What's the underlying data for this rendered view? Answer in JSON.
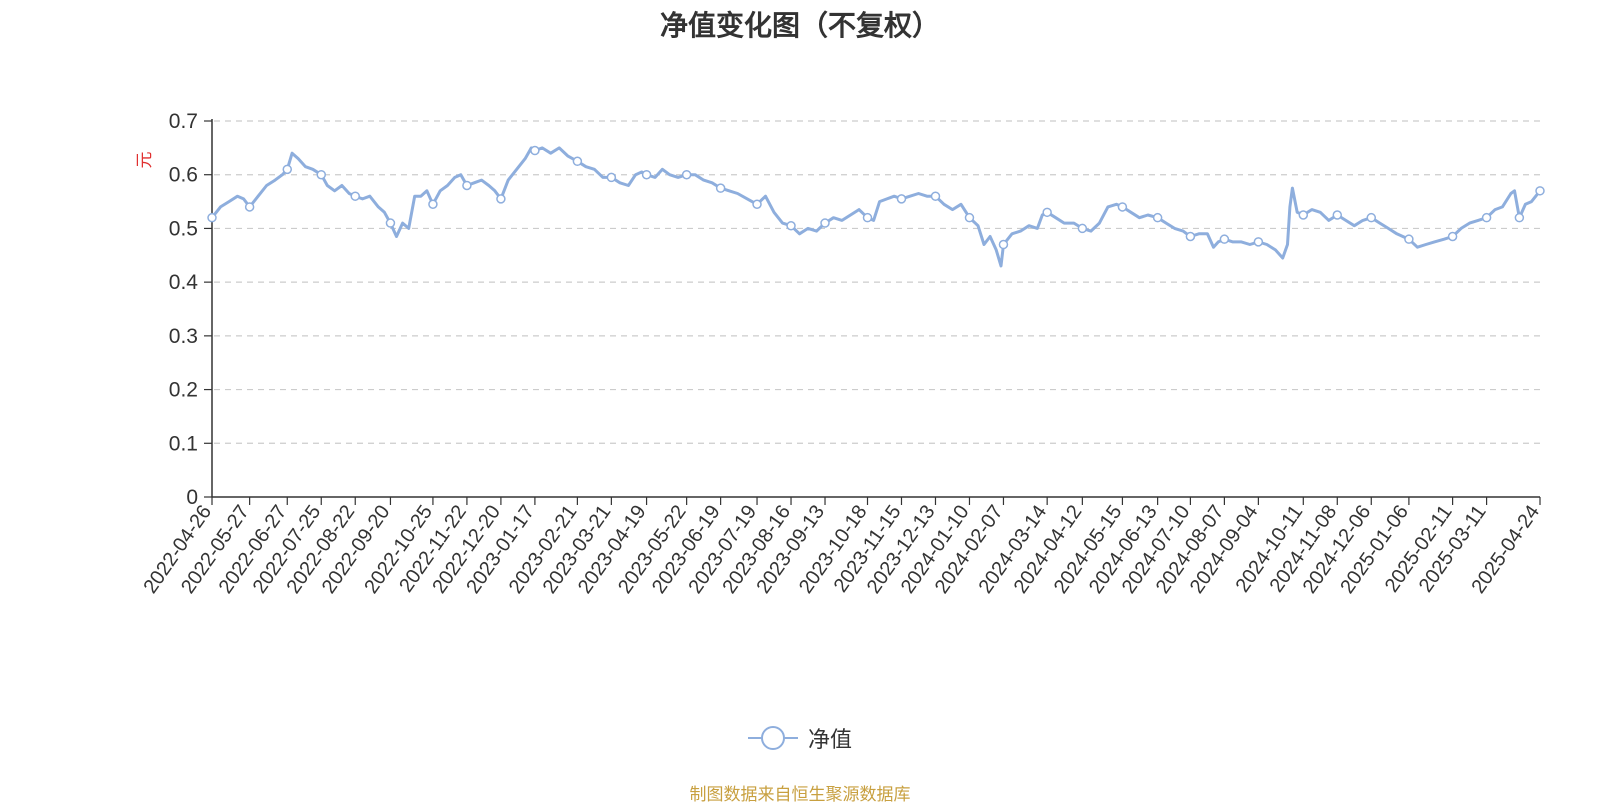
{
  "title": "净值变化图（不复权）",
  "legend": {
    "label": "净值"
  },
  "source": "制图数据来自恒生聚源数据库",
  "colors": {
    "line": "#8eaedd",
    "grid": "#cccccc",
    "axis": "#333333",
    "unit": "#e03030",
    "source": "#c8a040"
  },
  "chart_data": {
    "type": "line",
    "title": "净值变化图（不复权）",
    "ylabel": "元",
    "ylim": [
      0,
      0.7
    ],
    "yticks": [
      "0",
      "0.1",
      "0.2",
      "0.3",
      "0.4",
      "0.5",
      "0.6",
      "0.7"
    ],
    "grid": true,
    "legend_position": "bottom-center",
    "xlim": [
      "2022-04-26",
      "2025-04-24"
    ],
    "xticks": [
      "2022-04-26",
      "2022-05-27",
      "2022-06-27",
      "2022-07-25",
      "2022-08-22",
      "2022-09-20",
      "2022-10-25",
      "2022-11-22",
      "2022-12-20",
      "2023-01-17",
      "2023-02-21",
      "2023-03-21",
      "2023-04-19",
      "2023-05-22",
      "2023-06-19",
      "2023-07-19",
      "2023-08-16",
      "2023-09-13",
      "2023-10-18",
      "2023-11-15",
      "2023-12-13",
      "2024-01-10",
      "2024-02-07",
      "2024-03-14",
      "2024-04-12",
      "2024-05-15",
      "2024-06-13",
      "2024-07-10",
      "2024-08-07",
      "2024-09-04",
      "2024-10-11",
      "2024-11-08",
      "2024-12-06",
      "2025-01-06",
      "2025-02-11",
      "2025-03-11",
      "2025-04-24"
    ],
    "series": [
      {
        "name": "净值",
        "points": [
          [
            "2022-04-26",
            0.52
          ],
          [
            "2022-05-03",
            0.54
          ],
          [
            "2022-05-10",
            0.55
          ],
          [
            "2022-05-17",
            0.56
          ],
          [
            "2022-05-22",
            0.555
          ],
          [
            "2022-05-27",
            0.54
          ],
          [
            "2022-06-03",
            0.56
          ],
          [
            "2022-06-10",
            0.58
          ],
          [
            "2022-06-17",
            0.59
          ],
          [
            "2022-06-23",
            0.6
          ],
          [
            "2022-06-27",
            0.61
          ],
          [
            "2022-07-01",
            0.64
          ],
          [
            "2022-07-06",
            0.63
          ],
          [
            "2022-07-12",
            0.615
          ],
          [
            "2022-07-18",
            0.61
          ],
          [
            "2022-07-25",
            0.6
          ],
          [
            "2022-07-30",
            0.58
          ],
          [
            "2022-08-05",
            0.57
          ],
          [
            "2022-08-11",
            0.58
          ],
          [
            "2022-08-17",
            0.565
          ],
          [
            "2022-08-22",
            0.56
          ],
          [
            "2022-08-28",
            0.555
          ],
          [
            "2022-09-03",
            0.56
          ],
          [
            "2022-09-10",
            0.54
          ],
          [
            "2022-09-15",
            0.53
          ],
          [
            "2022-09-20",
            0.51
          ],
          [
            "2022-09-25",
            0.485
          ],
          [
            "2022-09-30",
            0.51
          ],
          [
            "2022-10-05",
            0.5
          ],
          [
            "2022-10-10",
            0.56
          ],
          [
            "2022-10-15",
            0.56
          ],
          [
            "2022-10-20",
            0.57
          ],
          [
            "2022-10-25",
            0.545
          ],
          [
            "2022-10-31",
            0.57
          ],
          [
            "2022-11-06",
            0.58
          ],
          [
            "2022-11-12",
            0.595
          ],
          [
            "2022-11-17",
            0.6
          ],
          [
            "2022-11-22",
            0.58
          ],
          [
            "2022-11-28",
            0.585
          ],
          [
            "2022-12-04",
            0.59
          ],
          [
            "2022-12-10",
            0.58
          ],
          [
            "2022-12-15",
            0.57
          ],
          [
            "2022-12-20",
            0.555
          ],
          [
            "2022-12-26",
            0.59
          ],
          [
            "2023-01-02",
            0.61
          ],
          [
            "2023-01-09",
            0.63
          ],
          [
            "2023-01-14",
            0.65
          ],
          [
            "2023-01-17",
            0.645
          ],
          [
            "2023-01-23",
            0.65
          ],
          [
            "2023-01-30",
            0.64
          ],
          [
            "2023-02-06",
            0.65
          ],
          [
            "2023-02-13",
            0.635
          ],
          [
            "2023-02-21",
            0.625
          ],
          [
            "2023-02-28",
            0.615
          ],
          [
            "2023-03-07",
            0.61
          ],
          [
            "2023-03-14",
            0.595
          ],
          [
            "2023-03-21",
            0.595
          ],
          [
            "2023-03-28",
            0.585
          ],
          [
            "2023-04-04",
            0.58
          ],
          [
            "2023-04-10",
            0.6
          ],
          [
            "2023-04-15",
            0.605
          ],
          [
            "2023-04-19",
            0.6
          ],
          [
            "2023-04-26",
            0.595
          ],
          [
            "2023-05-02",
            0.61
          ],
          [
            "2023-05-08",
            0.6
          ],
          [
            "2023-05-15",
            0.595
          ],
          [
            "2023-05-22",
            0.6
          ],
          [
            "2023-05-29",
            0.6
          ],
          [
            "2023-06-05",
            0.59
          ],
          [
            "2023-06-12",
            0.585
          ],
          [
            "2023-06-19",
            0.575
          ],
          [
            "2023-06-26",
            0.57
          ],
          [
            "2023-07-03",
            0.565
          ],
          [
            "2023-07-11",
            0.555
          ],
          [
            "2023-07-19",
            0.545
          ],
          [
            "2023-07-26",
            0.56
          ],
          [
            "2023-08-02",
            0.53
          ],
          [
            "2023-08-09",
            0.51
          ],
          [
            "2023-08-16",
            0.505
          ],
          [
            "2023-08-23",
            0.49
          ],
          [
            "2023-08-30",
            0.5
          ],
          [
            "2023-09-06",
            0.495
          ],
          [
            "2023-09-13",
            0.51
          ],
          [
            "2023-09-20",
            0.52
          ],
          [
            "2023-09-27",
            0.515
          ],
          [
            "2023-10-04",
            0.525
          ],
          [
            "2023-10-11",
            0.535
          ],
          [
            "2023-10-18",
            0.52
          ],
          [
            "2023-10-23",
            0.515
          ],
          [
            "2023-10-28",
            0.55
          ],
          [
            "2023-11-03",
            0.555
          ],
          [
            "2023-11-09",
            0.56
          ],
          [
            "2023-11-15",
            0.555
          ],
          [
            "2023-11-22",
            0.56
          ],
          [
            "2023-11-29",
            0.565
          ],
          [
            "2023-12-06",
            0.56
          ],
          [
            "2023-12-13",
            0.56
          ],
          [
            "2023-12-20",
            0.545
          ],
          [
            "2023-12-27",
            0.535
          ],
          [
            "2024-01-03",
            0.545
          ],
          [
            "2024-01-10",
            0.52
          ],
          [
            "2024-01-17",
            0.505
          ],
          [
            "2024-01-22",
            0.47
          ],
          [
            "2024-01-27",
            0.485
          ],
          [
            "2024-02-01",
            0.46
          ],
          [
            "2024-02-05",
            0.43
          ],
          [
            "2024-02-07",
            0.47
          ],
          [
            "2024-02-14",
            0.49
          ],
          [
            "2024-02-21",
            0.495
          ],
          [
            "2024-02-28",
            0.505
          ],
          [
            "2024-03-06",
            0.5
          ],
          [
            "2024-03-10",
            0.525
          ],
          [
            "2024-03-14",
            0.53
          ],
          [
            "2024-03-21",
            0.52
          ],
          [
            "2024-03-28",
            0.51
          ],
          [
            "2024-04-05",
            0.51
          ],
          [
            "2024-04-12",
            0.5
          ],
          [
            "2024-04-19",
            0.495
          ],
          [
            "2024-04-26",
            0.51
          ],
          [
            "2024-05-03",
            0.54
          ],
          [
            "2024-05-10",
            0.545
          ],
          [
            "2024-05-15",
            0.54
          ],
          [
            "2024-05-22",
            0.53
          ],
          [
            "2024-05-29",
            0.52
          ],
          [
            "2024-06-05",
            0.525
          ],
          [
            "2024-06-13",
            0.52
          ],
          [
            "2024-06-20",
            0.51
          ],
          [
            "2024-06-27",
            0.5
          ],
          [
            "2024-07-04",
            0.495
          ],
          [
            "2024-07-10",
            0.485
          ],
          [
            "2024-07-17",
            0.49
          ],
          [
            "2024-07-24",
            0.49
          ],
          [
            "2024-07-29",
            0.465
          ],
          [
            "2024-08-02",
            0.475
          ],
          [
            "2024-08-07",
            0.48
          ],
          [
            "2024-08-14",
            0.475
          ],
          [
            "2024-08-21",
            0.475
          ],
          [
            "2024-08-28",
            0.47
          ],
          [
            "2024-09-04",
            0.475
          ],
          [
            "2024-09-11",
            0.47
          ],
          [
            "2024-09-18",
            0.46
          ],
          [
            "2024-09-24",
            0.445
          ],
          [
            "2024-09-28",
            0.47
          ],
          [
            "2024-09-30",
            0.54
          ],
          [
            "2024-10-02",
            0.575
          ],
          [
            "2024-10-06",
            0.53
          ],
          [
            "2024-10-11",
            0.525
          ],
          [
            "2024-10-18",
            0.535
          ],
          [
            "2024-10-25",
            0.53
          ],
          [
            "2024-11-01",
            0.515
          ],
          [
            "2024-11-08",
            0.525
          ],
          [
            "2024-11-15",
            0.515
          ],
          [
            "2024-11-22",
            0.505
          ],
          [
            "2024-11-29",
            0.515
          ],
          [
            "2024-12-06",
            0.52
          ],
          [
            "2024-12-13",
            0.51
          ],
          [
            "2024-12-20",
            0.5
          ],
          [
            "2024-12-27",
            0.49
          ],
          [
            "2025-01-06",
            0.48
          ],
          [
            "2025-01-13",
            0.465
          ],
          [
            "2025-01-20",
            0.47
          ],
          [
            "2025-01-27",
            0.475
          ],
          [
            "2025-02-04",
            0.48
          ],
          [
            "2025-02-11",
            0.485
          ],
          [
            "2025-02-18",
            0.5
          ],
          [
            "2025-02-25",
            0.51
          ],
          [
            "2025-03-04",
            0.515
          ],
          [
            "2025-03-11",
            0.52
          ],
          [
            "2025-03-18",
            0.535
          ],
          [
            "2025-03-24",
            0.54
          ],
          [
            "2025-03-31",
            0.565
          ],
          [
            "2025-04-03",
            0.57
          ],
          [
            "2025-04-07",
            0.52
          ],
          [
            "2025-04-12",
            0.545
          ],
          [
            "2025-04-17",
            0.55
          ],
          [
            "2025-04-24",
            0.57
          ]
        ],
        "markers": [
          [
            "2022-04-26",
            0.52
          ],
          [
            "2022-05-27",
            0.54
          ],
          [
            "2022-06-27",
            0.61
          ],
          [
            "2022-07-25",
            0.6
          ],
          [
            "2022-08-22",
            0.56
          ],
          [
            "2022-09-20",
            0.51
          ],
          [
            "2022-10-25",
            0.545
          ],
          [
            "2022-11-22",
            0.58
          ],
          [
            "2022-12-20",
            0.555
          ],
          [
            "2023-01-17",
            0.645
          ],
          [
            "2023-02-21",
            0.625
          ],
          [
            "2023-03-21",
            0.595
          ],
          [
            "2023-04-19",
            0.6
          ],
          [
            "2023-05-22",
            0.6
          ],
          [
            "2023-06-19",
            0.575
          ],
          [
            "2023-07-19",
            0.545
          ],
          [
            "2023-08-16",
            0.505
          ],
          [
            "2023-09-13",
            0.51
          ],
          [
            "2023-10-18",
            0.52
          ],
          [
            "2023-11-15",
            0.555
          ],
          [
            "2023-12-13",
            0.56
          ],
          [
            "2024-01-10",
            0.52
          ],
          [
            "2024-02-07",
            0.47
          ],
          [
            "2024-03-14",
            0.53
          ],
          [
            "2024-04-12",
            0.5
          ],
          [
            "2024-05-15",
            0.54
          ],
          [
            "2024-06-13",
            0.52
          ],
          [
            "2024-07-10",
            0.485
          ],
          [
            "2024-08-07",
            0.48
          ],
          [
            "2024-09-04",
            0.475
          ],
          [
            "2024-10-11",
            0.525
          ],
          [
            "2024-11-08",
            0.525
          ],
          [
            "2024-12-06",
            0.52
          ],
          [
            "2025-01-06",
            0.48
          ],
          [
            "2025-02-11",
            0.485
          ],
          [
            "2025-03-11",
            0.52
          ],
          [
            "2025-04-07",
            0.52
          ],
          [
            "2025-04-24",
            0.57
          ]
        ]
      }
    ]
  }
}
